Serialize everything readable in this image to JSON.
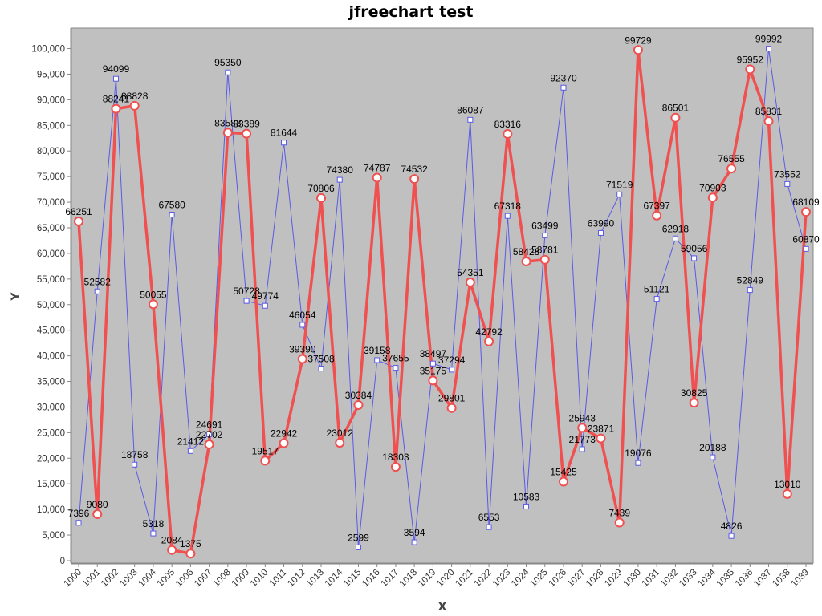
{
  "chart_data": {
    "type": "line",
    "title": "jfreechart test",
    "xlabel": "X",
    "ylabel": "Y",
    "x": [
      1000,
      1001,
      1002,
      1003,
      1004,
      1005,
      1006,
      1007,
      1008,
      1009,
      1010,
      1011,
      1012,
      1013,
      1014,
      1015,
      1016,
      1017,
      1018,
      1019,
      1020,
      1021,
      1022,
      1023,
      1024,
      1025,
      1026,
      1027,
      1028,
      1029,
      1030,
      1031,
      1032,
      1033,
      1034,
      1035,
      1036,
      1037,
      1038,
      1039
    ],
    "ylim": [
      0,
      104000
    ],
    "ytick_labels": [
      "0",
      "5,000",
      "10,000",
      "15,000",
      "20,000",
      "25,000",
      "30,000",
      "35,000",
      "40,000",
      "45,000",
      "50,000",
      "55,000",
      "60,000",
      "65,000",
      "70,000",
      "75,000",
      "80,000",
      "85,000",
      "90,000",
      "95,000",
      "100,000"
    ],
    "grid": false,
    "legend": "none",
    "background": "#c0c0c0",
    "series": [
      {
        "color": "#5a5ae6",
        "marker": "square",
        "values": [
          7396,
          52582,
          94099,
          18758,
          5318,
          67580,
          21412,
          24691,
          95350,
          50728,
          49774,
          81644,
          46054,
          37508,
          74380,
          2599,
          39158,
          37655,
          3594,
          38497,
          37294,
          86087,
          6553,
          67318,
          10583,
          63499,
          92370,
          21773,
          63990,
          71519,
          19076,
          51121,
          62918,
          59056,
          20188,
          4826,
          52849,
          99992,
          73552,
          60870
        ]
      },
      {
        "color": "#f05050",
        "marker": "circle",
        "values": [
          66251,
          9080,
          88241,
          88828,
          50055,
          2084,
          1375,
          22702,
          83583,
          83389,
          19517,
          22942,
          39390,
          70806,
          23012,
          30384,
          74787,
          18303,
          74532,
          35175,
          29801,
          54351,
          42792,
          83316,
          58428,
          58781,
          15425,
          25943,
          23871,
          7439,
          99729,
          67397,
          86501,
          30825,
          70903,
          76555,
          95952,
          85831,
          13010,
          68109
        ]
      }
    ]
  }
}
